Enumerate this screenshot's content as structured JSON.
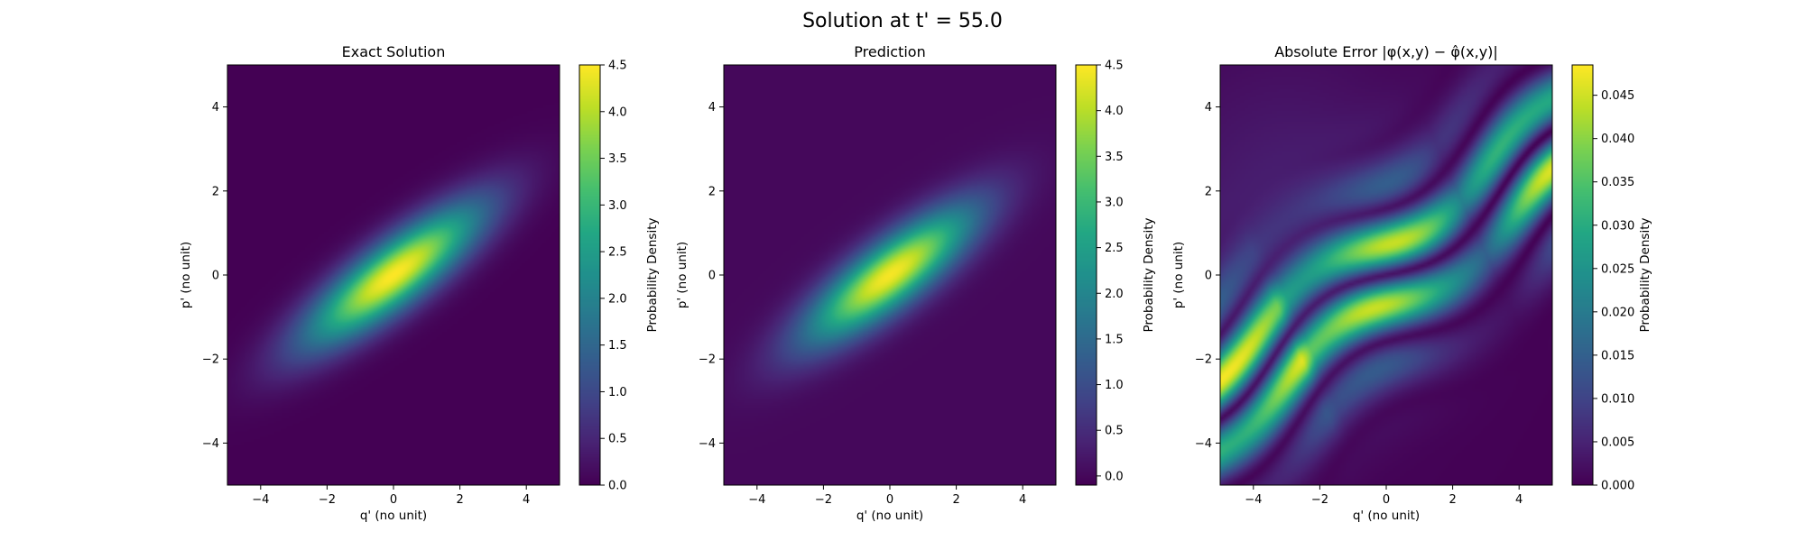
{
  "suptitle": "Solution at t' = 55.0",
  "chart_data": [
    {
      "type": "heatmap",
      "title": "Exact Solution",
      "xlabel": "q' (no unit)",
      "ylabel": "p' (no unit)",
      "xlim": [
        -5,
        5
      ],
      "ylim": [
        -5,
        5
      ],
      "xticks": [
        -4,
        -2,
        0,
        2,
        4
      ],
      "yticks": [
        -4,
        -2,
        0,
        2,
        4
      ],
      "colormap": "viridis",
      "colorbar": {
        "label": "Probability Density",
        "range": [
          0,
          4.5
        ],
        "ticks": [
          0.0,
          0.5,
          1.0,
          1.5,
          2.0,
          2.5,
          3.0,
          3.5,
          4.0,
          4.5
        ]
      },
      "field": {
        "kind": "tilted-gaussian",
        "peak": 4.5,
        "center": [
          0,
          0
        ],
        "major_axis_angle_deg": 30,
        "sigma_major": 2.1,
        "sigma_minor": 0.55
      }
    },
    {
      "type": "heatmap",
      "title": "Prediction",
      "xlabel": "q' (no unit)",
      "ylabel": "p' (no unit)",
      "xlim": [
        -5,
        5
      ],
      "ylim": [
        -5,
        5
      ],
      "xticks": [
        -4,
        -2,
        0,
        2,
        4
      ],
      "yticks": [
        -4,
        -2,
        0,
        2,
        4
      ],
      "colormap": "viridis",
      "colorbar": {
        "label": "Probability Density",
        "range": [
          -0.1,
          4.5
        ],
        "ticks": [
          0.0,
          0.5,
          1.0,
          1.5,
          2.0,
          2.5,
          3.0,
          3.5,
          4.0,
          4.5
        ]
      },
      "field": {
        "kind": "tilted-gaussian",
        "peak": 4.45,
        "center": [
          0,
          0
        ],
        "major_axis_angle_deg": 30,
        "sigma_major": 2.0,
        "sigma_minor": 0.55
      }
    },
    {
      "type": "heatmap",
      "title": "Absolute Error |φ(x,y) − φ̂(x,y)|",
      "xlabel": "q' (no unit)",
      "ylabel": "p' (no unit)",
      "xlim": [
        -5,
        5
      ],
      "ylim": [
        -5,
        5
      ],
      "xticks": [
        -4,
        -2,
        0,
        2,
        4
      ],
      "yticks": [
        -4,
        -2,
        0,
        2,
        4
      ],
      "colormap": "viridis",
      "colorbar": {
        "label": "Probability Density",
        "range": [
          0,
          0.0485
        ],
        "ticks": [
          0.0,
          0.005,
          0.01,
          0.015,
          0.02,
          0.025,
          0.03,
          0.035,
          0.04,
          0.045
        ],
        "tick_labels": [
          "0.000",
          "0.005",
          "0.010",
          "0.015",
          "0.020",
          "0.025",
          "0.030",
          "0.035",
          "0.040",
          "0.045"
        ]
      },
      "field": {
        "kind": "error-bands",
        "peak": 0.048
      }
    }
  ]
}
